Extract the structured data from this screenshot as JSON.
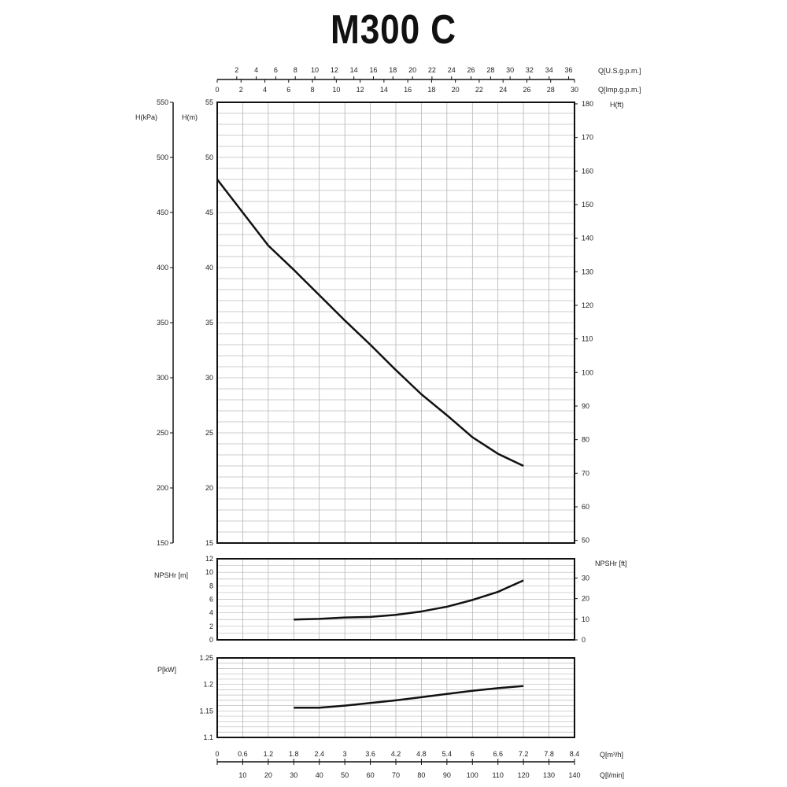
{
  "chart_data": [
    {
      "type": "line",
      "title": "M300 C",
      "xlabel": "Q[m³/h]",
      "x_label_bottom2": "Q[l/min]",
      "x_label_top1": "Q[U.S.g.p.m.]",
      "x_label_top2": "Q[Imp.g.p.m.]",
      "ylabel": "H(m)",
      "ylabel_left2": "H(kPa)",
      "ylabel_right": "H(ft)",
      "xlim": [
        0,
        8.4
      ],
      "ylim": [
        15,
        55
      ],
      "grid": true,
      "x": [
        0,
        0.6,
        1.2,
        1.8,
        2.4,
        3.0,
        3.6,
        4.2,
        4.8,
        5.4,
        6.0,
        6.6,
        7.2
      ],
      "values": [
        48,
        45,
        42,
        39.8,
        37.5,
        35.2,
        33,
        30.7,
        28.5,
        26.6,
        24.6,
        23.1,
        22
      ],
      "ticks_m": [
        15,
        20,
        25,
        30,
        35,
        40,
        45,
        50,
        55
      ],
      "ticks_kpa": [
        150,
        200,
        250,
        300,
        350,
        400,
        450,
        500,
        550
      ],
      "ticks_ft": [
        50,
        60,
        70,
        80,
        90,
        100,
        110,
        120,
        130,
        140,
        150,
        160,
        170,
        180
      ],
      "ticks_us_gpm": [
        2,
        4,
        6,
        8,
        10,
        12,
        14,
        16,
        18,
        20,
        22,
        24,
        26,
        28,
        30,
        32,
        34,
        36
      ],
      "ticks_imp_gpm": [
        0,
        2,
        4,
        6,
        8,
        10,
        12,
        14,
        16,
        18,
        20,
        22,
        24,
        26,
        28,
        30
      ],
      "color": "#111111"
    },
    {
      "type": "line",
      "ylabel": "NPSHr [m]",
      "ylabel_right": "NPSHr [ft]",
      "xlim": [
        0,
        8.4
      ],
      "ylim": [
        0,
        12
      ],
      "grid": true,
      "x": [
        1.8,
        2.4,
        3.0,
        3.6,
        4.2,
        4.8,
        5.4,
        6.0,
        6.6,
        7.2
      ],
      "values": [
        3.0,
        3.1,
        3.3,
        3.4,
        3.7,
        4.2,
        4.9,
        5.9,
        7.1,
        8.8
      ],
      "ticks_m": [
        0,
        2,
        4,
        6,
        8,
        10,
        12
      ],
      "ticks_ft": [
        0,
        10,
        20,
        30
      ]
    },
    {
      "type": "line",
      "ylabel": "P[kW]",
      "xlim": [
        0,
        8.4
      ],
      "ylim": [
        1.1,
        1.25
      ],
      "grid": true,
      "x": [
        1.8,
        2.4,
        3.0,
        3.6,
        4.2,
        4.8,
        5.4,
        6.0,
        6.6,
        7.2
      ],
      "values": [
        1.156,
        1.156,
        1.16,
        1.165,
        1.17,
        1.176,
        1.182,
        1.188,
        1.193,
        1.197
      ],
      "ticks": [
        "1.1",
        "1.15",
        "1.2",
        "1.25"
      ],
      "ticks_m3h": [
        "0",
        "0.6",
        "1.2",
        "1.8",
        "2.4",
        "3",
        "3.6",
        "4.2",
        "4.8",
        "5.4",
        "6",
        "6.6",
        "7.2",
        "7.8",
        "8.4"
      ],
      "ticks_lmin": [
        10,
        20,
        30,
        40,
        50,
        60,
        70,
        80,
        90,
        100,
        110,
        120,
        130,
        140
      ]
    }
  ]
}
